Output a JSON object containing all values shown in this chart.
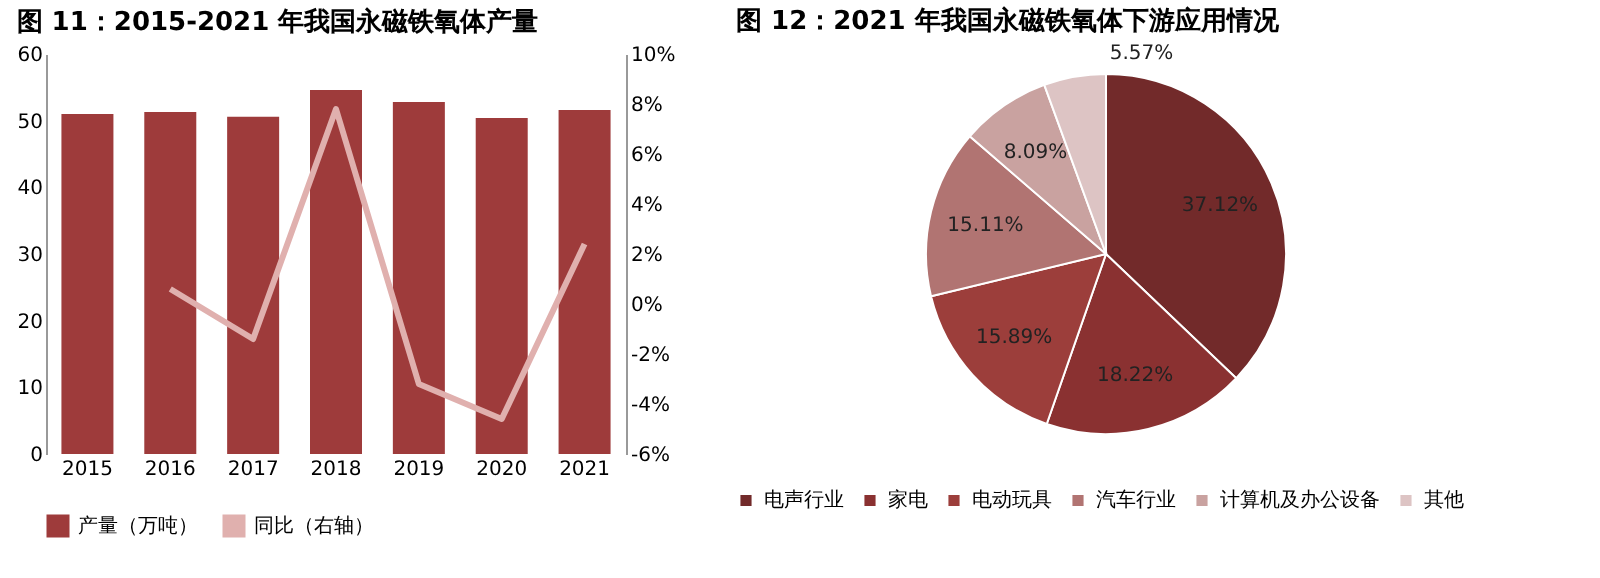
{
  "chart_data": [
    {
      "type": "bar",
      "title": "图 11：2015-2021 年我国永磁铁氧体产量",
      "categories": [
        "2015",
        "2016",
        "2017",
        "2018",
        "2019",
        "2020",
        "2021"
      ],
      "series": [
        {
          "name": "产量（万吨）",
          "color": "#9e3b3b",
          "values": [
            51,
            51.3,
            50.6,
            54.6,
            52.8,
            50.4,
            51.6
          ]
        },
        {
          "name": "同比（右轴）",
          "type": "line",
          "axis": "y2",
          "color": "#e0b0ae",
          "values": [
            null,
            0.6,
            -1.4,
            7.8,
            -3.2,
            -4.6,
            2.4
          ]
        }
      ],
      "ylim": [
        0,
        60
      ],
      "yticks": [
        0,
        10,
        20,
        30,
        40,
        50,
        60
      ],
      "y2lim": [
        -6,
        10
      ],
      "y2ticks": [
        {
          "value": -6,
          "label": "-6%"
        },
        {
          "value": -4,
          "label": "-4%"
        },
        {
          "value": -2,
          "label": "-2%"
        },
        {
          "value": 0,
          "label": "0%"
        },
        {
          "value": 2,
          "label": "2%"
        },
        {
          "value": 4,
          "label": "4%"
        },
        {
          "value": 6,
          "label": "6%"
        },
        {
          "value": 8,
          "label": "8%"
        },
        {
          "value": 10,
          "label": "10%"
        }
      ],
      "legend": "bottom",
      "grid": false
    },
    {
      "type": "pie",
      "title": "图 12：2021 年我国永磁铁氧体下游应用情况",
      "categories": [
        "电声行业",
        "家电",
        "电动玩具",
        "汽车行业",
        "计算机及办公设备",
        "其他"
      ],
      "values": [
        37.12,
        18.22,
        15.89,
        15.11,
        8.09,
        5.57
      ],
      "colors": [
        "#722a2a",
        "#8a3131",
        "#9c3e3b",
        "#b17472",
        "#c9a2a0",
        "#ddc4c4"
      ],
      "value_labels": [
        "37.12%",
        "18.22%",
        "15.89%",
        "15.11%",
        "8.09%",
        "5.57%"
      ],
      "legend": "bottom"
    }
  ]
}
